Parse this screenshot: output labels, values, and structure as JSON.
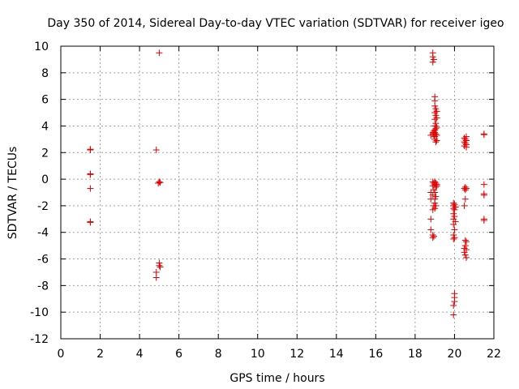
{
  "chart_data": {
    "type": "scatter",
    "title": "Day 350 of 2014, Sidereal Day-to-day VTEC variation (SDTVAR) for receiver igeo",
    "xlabel": "GPS time / hours",
    "ylabel": "SDTVAR / TECUs",
    "xlim": [
      0,
      22
    ],
    "ylim": [
      -12,
      10
    ],
    "xticks": [
      "0",
      "2",
      "4",
      "6",
      "8",
      "10",
      "12",
      "14",
      "16",
      "18",
      "20",
      "22"
    ],
    "yticks": [
      "-12",
      "-10",
      "-8",
      "-6",
      "-4",
      "-2",
      "0",
      "2",
      "4",
      "6",
      "8",
      "10"
    ],
    "grid": true,
    "marker": "+",
    "color": "#e00000",
    "series": [
      {
        "name": "SDTVAR",
        "points": [
          [
            1.5,
            2.2
          ],
          [
            1.5,
            2.25
          ],
          [
            1.5,
            0.4
          ],
          [
            1.5,
            0.35
          ],
          [
            1.5,
            -0.7
          ],
          [
            1.5,
            -3.2
          ],
          [
            1.5,
            -3.25
          ],
          [
            4.85,
            2.2
          ],
          [
            4.85,
            -7.0
          ],
          [
            4.85,
            -7.4
          ],
          [
            5.0,
            9.5
          ],
          [
            5.0,
            -0.2
          ],
          [
            5.05,
            -0.25
          ],
          [
            4.95,
            -0.3
          ],
          [
            5.0,
            -6.3
          ],
          [
            5.0,
            -6.5
          ],
          [
            5.05,
            -6.6
          ],
          [
            18.8,
            3.3
          ],
          [
            18.8,
            -1.0
          ],
          [
            18.8,
            -1.5
          ],
          [
            18.8,
            -3.0
          ],
          [
            18.8,
            -3.8
          ],
          [
            18.9,
            9.5
          ],
          [
            18.9,
            9.2
          ],
          [
            18.9,
            8.8
          ],
          [
            18.9,
            3.4
          ],
          [
            18.9,
            3.5
          ],
          [
            18.9,
            -0.2
          ],
          [
            18.9,
            -0.5
          ],
          [
            18.9,
            -1.2
          ],
          [
            18.9,
            -2.3
          ],
          [
            18.9,
            -4.2
          ],
          [
            18.9,
            -4.4
          ],
          [
            18.95,
            9.0
          ],
          [
            18.95,
            3.6
          ],
          [
            18.95,
            3.3
          ],
          [
            18.95,
            -0.3
          ],
          [
            18.95,
            -0.8
          ],
          [
            18.95,
            -2.0
          ],
          [
            18.95,
            -4.3
          ],
          [
            19.0,
            6.2
          ],
          [
            19.0,
            5.9
          ],
          [
            19.0,
            5.5
          ],
          [
            19.0,
            5.0
          ],
          [
            19.0,
            4.5
          ],
          [
            19.0,
            4.0
          ],
          [
            19.0,
            3.7
          ],
          [
            19.0,
            3.5
          ],
          [
            19.0,
            3.2
          ],
          [
            19.0,
            3.0
          ],
          [
            19.0,
            -0.2
          ],
          [
            19.0,
            -0.4
          ],
          [
            19.0,
            -1.0
          ],
          [
            19.0,
            -1.5
          ],
          [
            19.0,
            -1.8
          ],
          [
            19.0,
            -2.2
          ],
          [
            19.05,
            5.3
          ],
          [
            19.05,
            4.8
          ],
          [
            19.05,
            4.2
          ],
          [
            19.05,
            3.8
          ],
          [
            19.05,
            3.4
          ],
          [
            19.05,
            2.8
          ],
          [
            19.05,
            -0.3
          ],
          [
            19.05,
            -0.6
          ],
          [
            19.05,
            -1.3
          ],
          [
            19.05,
            -2.0
          ],
          [
            19.1,
            5.1
          ],
          [
            19.1,
            4.6
          ],
          [
            19.1,
            3.9
          ],
          [
            19.1,
            3.3
          ],
          [
            19.1,
            2.9
          ],
          [
            19.1,
            -0.4
          ],
          [
            19.1,
            -0.5
          ],
          [
            19.95,
            -1.8
          ],
          [
            19.95,
            -2.0
          ],
          [
            19.95,
            -2.2
          ],
          [
            19.95,
            -2.6
          ],
          [
            19.95,
            -3.0
          ],
          [
            19.95,
            -3.4
          ],
          [
            19.95,
            -4.2
          ],
          [
            19.95,
            -4.5
          ],
          [
            19.95,
            -9.5
          ],
          [
            19.95,
            -10.2
          ],
          [
            20.0,
            -1.9
          ],
          [
            20.0,
            -2.3
          ],
          [
            20.0,
            -2.8
          ],
          [
            20.0,
            -3.8
          ],
          [
            20.0,
            -4.4
          ],
          [
            20.0,
            -8.6
          ],
          [
            20.0,
            -8.9
          ],
          [
            20.0,
            -9.2
          ],
          [
            20.05,
            -2.1
          ],
          [
            20.05,
            -3.2
          ],
          [
            20.5,
            3.1
          ],
          [
            20.5,
            2.8
          ],
          [
            20.5,
            2.5
          ],
          [
            20.5,
            -0.7
          ],
          [
            20.5,
            -2.0
          ],
          [
            20.5,
            -5.2
          ],
          [
            20.5,
            -5.5
          ],
          [
            20.55,
            3.0
          ],
          [
            20.55,
            2.7
          ],
          [
            20.55,
            -0.6
          ],
          [
            20.55,
            -0.8
          ],
          [
            20.55,
            -1.5
          ],
          [
            20.55,
            -4.6
          ],
          [
            20.55,
            -5.0
          ],
          [
            20.55,
            -5.7
          ],
          [
            20.6,
            3.2
          ],
          [
            20.6,
            2.9
          ],
          [
            20.6,
            2.6
          ],
          [
            20.6,
            2.4
          ],
          [
            20.6,
            -0.7
          ],
          [
            20.6,
            -4.7
          ],
          [
            20.6,
            -5.3
          ],
          [
            20.6,
            -5.9
          ],
          [
            21.5,
            3.35
          ],
          [
            21.5,
            3.4
          ],
          [
            21.5,
            -0.4
          ],
          [
            21.5,
            -1.1
          ],
          [
            21.5,
            -1.2
          ],
          [
            21.5,
            -3.0
          ],
          [
            21.5,
            -3.1
          ]
        ]
      }
    ]
  }
}
